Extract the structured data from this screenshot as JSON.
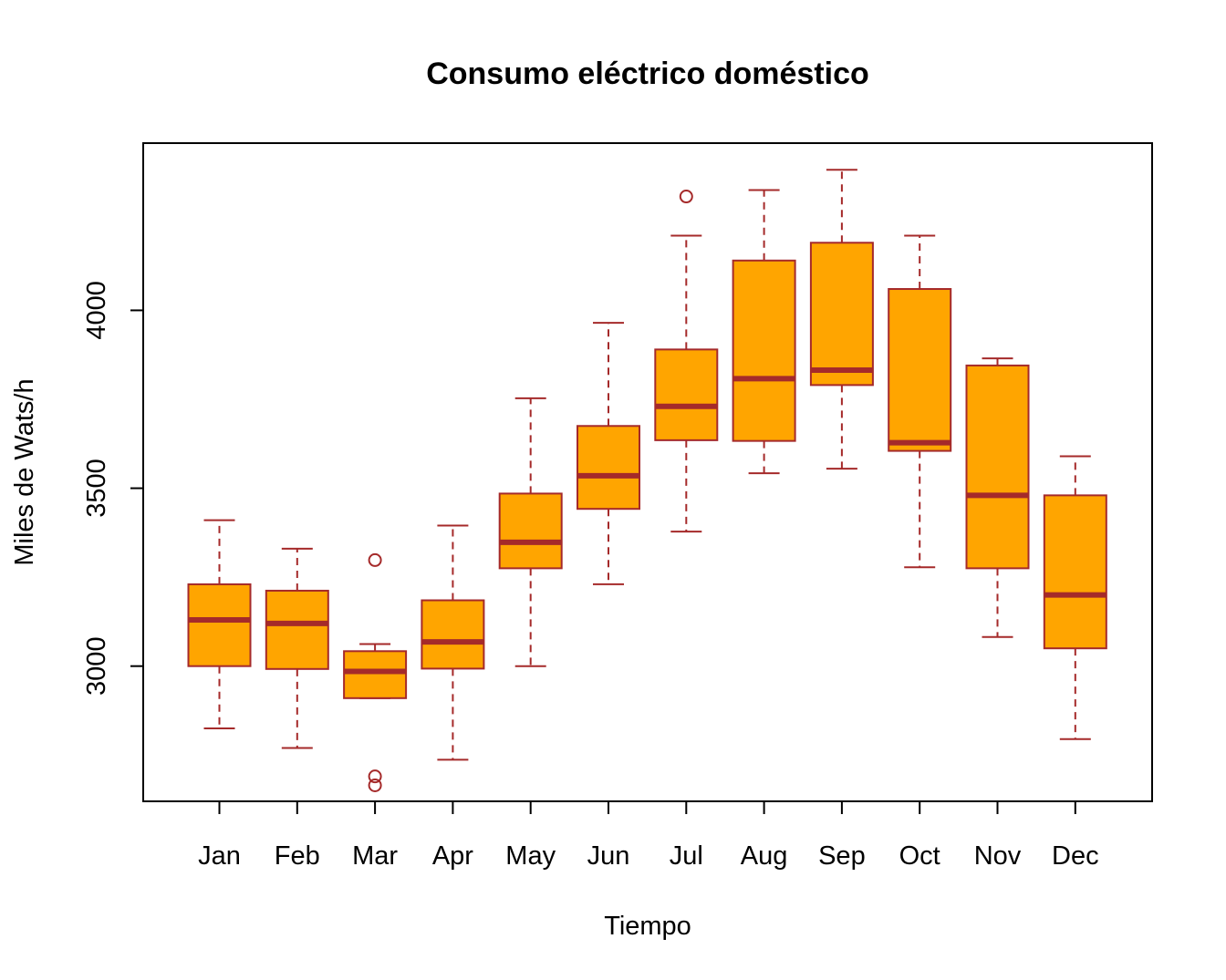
{
  "chart_data": {
    "type": "boxplot",
    "title": "Consumo eléctrico doméstico",
    "xlabel": "Tiempo",
    "ylabel": "Miles de Wats/h",
    "ylim": [
      2620,
      4470
    ],
    "yticks": [
      3000,
      3500,
      4000
    ],
    "categories": [
      "Jan",
      "Feb",
      "Mar",
      "Apr",
      "May",
      "Jun",
      "Jul",
      "Aug",
      "Sep",
      "Oct",
      "Nov",
      "Dec"
    ],
    "boxes": [
      {
        "month": "Jan",
        "whisker_low": 2825,
        "q1": 3000,
        "median": 3130,
        "q3": 3230,
        "whisker_high": 3410,
        "outliers": []
      },
      {
        "month": "Feb",
        "whisker_low": 2770,
        "q1": 2992,
        "median": 3120,
        "q3": 3212,
        "whisker_high": 3330,
        "outliers": []
      },
      {
        "month": "Mar",
        "whisker_low": 2910,
        "q1": 2910,
        "median": 2985,
        "q3": 3042,
        "whisker_high": 3062,
        "outliers": [
          3298,
          2690,
          2665
        ]
      },
      {
        "month": "Apr",
        "whisker_low": 2737,
        "q1": 2993,
        "median": 3068,
        "q3": 3185,
        "whisker_high": 3395,
        "outliers": []
      },
      {
        "month": "May",
        "whisker_low": 3000,
        "q1": 3275,
        "median": 3348,
        "q3": 3485,
        "whisker_high": 3753,
        "outliers": []
      },
      {
        "month": "Jun",
        "whisker_low": 3230,
        "q1": 3442,
        "median": 3535,
        "q3": 3675,
        "whisker_high": 3965,
        "outliers": []
      },
      {
        "month": "Jul",
        "whisker_low": 3378,
        "q1": 3635,
        "median": 3730,
        "q3": 3890,
        "whisker_high": 4210,
        "outliers": [
          4320
        ]
      },
      {
        "month": "Aug",
        "whisker_low": 3542,
        "q1": 3633,
        "median": 3808,
        "q3": 4140,
        "whisker_high": 4338,
        "outliers": []
      },
      {
        "month": "Sep",
        "whisker_low": 3555,
        "q1": 3790,
        "median": 3832,
        "q3": 4190,
        "whisker_high": 4395,
        "outliers": []
      },
      {
        "month": "Oct",
        "whisker_low": 3278,
        "q1": 3605,
        "median": 3628,
        "q3": 4060,
        "whisker_high": 4210,
        "outliers": []
      },
      {
        "month": "Nov",
        "whisker_low": 3082,
        "q1": 3275,
        "median": 3480,
        "q3": 3845,
        "whisker_high": 3865,
        "outliers": []
      },
      {
        "month": "Dec",
        "whisker_low": 2795,
        "q1": 3050,
        "median": 3200,
        "q3": 3480,
        "whisker_high": 3590,
        "outliers": []
      }
    ],
    "colors": {
      "box_fill": "#FFA500",
      "box_border": "#A52A2A",
      "median": "#A52A2A",
      "whisker": "#A52A2A",
      "outlier": "#A52A2A",
      "frame": "#000000"
    },
    "grid": false,
    "legend": "none"
  }
}
